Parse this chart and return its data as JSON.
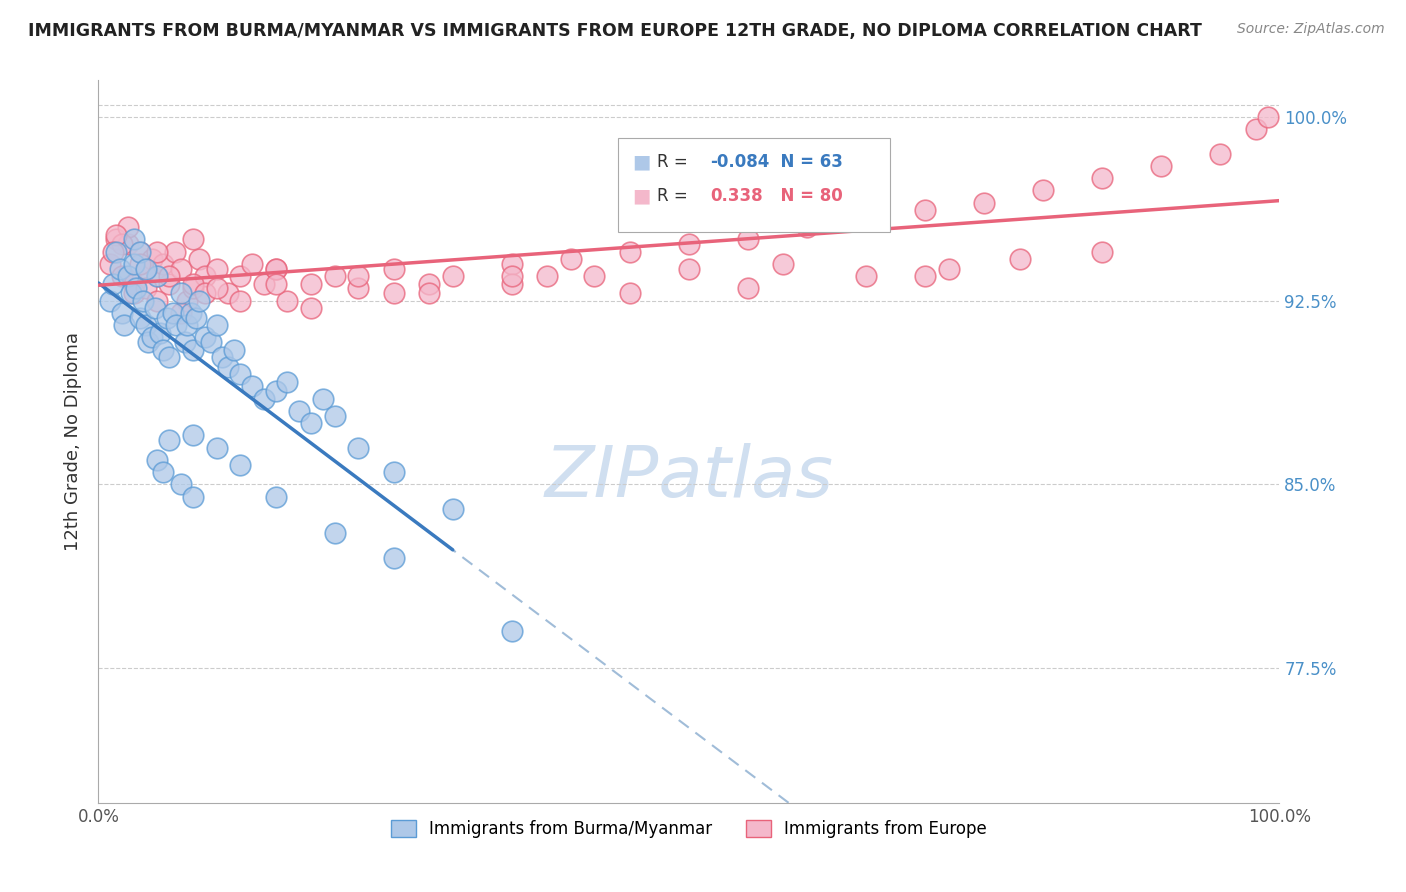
{
  "title": "IMMIGRANTS FROM BURMA/MYANMAR VS IMMIGRANTS FROM EUROPE 12TH GRADE, NO DIPLOMA CORRELATION CHART",
  "source": "Source: ZipAtlas.com",
  "ylabel": "12th Grade, No Diploma",
  "xmin": 0.0,
  "xmax": 100.0,
  "ymin": 72.0,
  "ymax": 101.5,
  "yticks": [
    77.5,
    85.0,
    92.5,
    100.0
  ],
  "ytick_labels": [
    "77.5%",
    "85.0%",
    "92.5%",
    "100.0%"
  ],
  "legend1_label": "Immigrants from Burma/Myanmar",
  "legend2_label": "Immigrants from Europe",
  "legend_R1_val": "-0.084",
  "legend_N1": "N = 63",
  "legend_R2_val": "0.338",
  "legend_N2": "N = 80",
  "blue_color_face": "#aec8e8",
  "blue_color_edge": "#5b9bd5",
  "pink_color_face": "#f4b8cb",
  "pink_color_edge": "#e8637a",
  "blue_line_color": "#3a7abf",
  "pink_line_color": "#e8637a",
  "blue_dash_color": "#a0bcd8",
  "watermark_color": "#d0dff0",
  "blue_x": [
    1.0,
    1.2,
    1.5,
    1.8,
    2.0,
    2.2,
    2.5,
    2.8,
    3.0,
    3.2,
    3.5,
    3.8,
    4.0,
    4.2,
    4.5,
    4.8,
    5.0,
    5.2,
    5.5,
    5.8,
    6.0,
    6.3,
    6.6,
    7.0,
    7.3,
    7.5,
    7.8,
    8.0,
    8.3,
    8.5,
    9.0,
    9.5,
    10.0,
    10.5,
    11.0,
    11.5,
    12.0,
    13.0,
    14.0,
    15.0,
    16.0,
    17.0,
    18.0,
    19.0,
    20.0,
    22.0,
    25.0,
    30.0,
    5.0,
    5.5,
    6.0,
    7.0,
    8.0,
    3.0,
    3.5,
    4.0,
    20.0,
    25.0,
    35.0,
    8.0,
    10.0,
    12.0,
    15.0
  ],
  "blue_y": [
    92.5,
    93.2,
    94.5,
    93.8,
    92.0,
    91.5,
    93.5,
    92.8,
    94.0,
    93.0,
    91.8,
    92.5,
    91.5,
    90.8,
    91.0,
    92.2,
    93.5,
    91.2,
    90.5,
    91.8,
    90.2,
    92.0,
    91.5,
    92.8,
    90.8,
    91.5,
    92.0,
    90.5,
    91.8,
    92.5,
    91.0,
    90.8,
    91.5,
    90.2,
    89.8,
    90.5,
    89.5,
    89.0,
    88.5,
    88.8,
    89.2,
    88.0,
    87.5,
    88.5,
    87.8,
    86.5,
    85.5,
    84.0,
    86.0,
    85.5,
    86.8,
    85.0,
    84.5,
    95.0,
    94.5,
    93.8,
    83.0,
    82.0,
    79.0,
    87.0,
    86.5,
    85.8,
    84.5
  ],
  "pink_x": [
    1.0,
    1.5,
    2.0,
    2.5,
    3.0,
    3.5,
    4.0,
    4.5,
    5.0,
    5.5,
    6.0,
    6.5,
    7.0,
    7.5,
    8.0,
    8.5,
    9.0,
    10.0,
    11.0,
    12.0,
    13.0,
    14.0,
    15.0,
    16.0,
    18.0,
    20.0,
    22.0,
    25.0,
    28.0,
    30.0,
    35.0,
    38.0,
    40.0,
    45.0,
    50.0,
    55.0,
    60.0,
    65.0,
    70.0,
    75.0,
    80.0,
    85.0,
    90.0,
    95.0,
    98.0,
    99.0,
    3.0,
    4.0,
    5.0,
    6.0,
    7.0,
    8.0,
    9.0,
    10.0,
    12.0,
    15.0,
    18.0,
    22.0,
    28.0,
    35.0,
    42.0,
    50.0,
    58.0,
    65.0,
    72.0,
    78.0,
    85.0,
    70.0,
    55.0,
    45.0,
    35.0,
    25.0,
    15.0,
    8.0,
    5.0,
    3.5,
    2.5,
    2.0,
    1.5,
    1.2
  ],
  "pink_y": [
    94.0,
    95.0,
    93.5,
    94.8,
    93.2,
    94.5,
    93.8,
    94.2,
    93.5,
    94.0,
    93.2,
    94.5,
    93.8,
    92.5,
    93.0,
    94.2,
    93.5,
    93.8,
    92.8,
    93.5,
    94.0,
    93.2,
    93.8,
    92.5,
    93.2,
    93.5,
    93.0,
    93.8,
    93.2,
    93.5,
    94.0,
    93.5,
    94.2,
    94.5,
    94.8,
    95.0,
    95.5,
    95.8,
    96.2,
    96.5,
    97.0,
    97.5,
    98.0,
    98.5,
    99.5,
    100.0,
    92.8,
    93.0,
    92.5,
    93.5,
    92.0,
    93.2,
    92.8,
    93.0,
    92.5,
    93.8,
    92.2,
    93.5,
    92.8,
    93.2,
    93.5,
    93.8,
    94.0,
    93.5,
    93.8,
    94.2,
    94.5,
    93.5,
    93.0,
    92.8,
    93.5,
    92.8,
    93.2,
    95.0,
    94.5,
    94.0,
    95.5,
    94.8,
    95.2,
    94.5
  ]
}
